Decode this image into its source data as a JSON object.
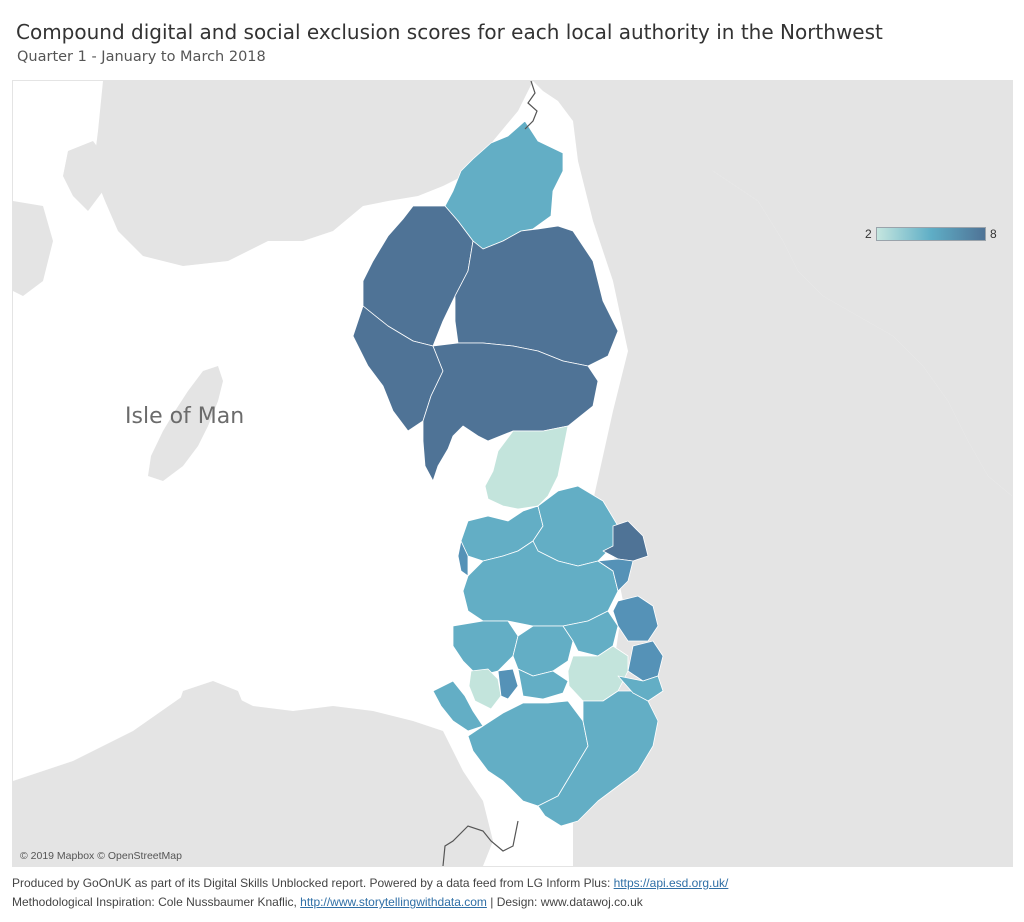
{
  "title": "Compound digital and social exclusion scores for each local authority in the Northwest",
  "subtitle": "Quarter 1 - January to March 2018",
  "map": {
    "place_label": "Isle of Man",
    "attribution": "© 2019 Mapbox © OpenStreetMap",
    "legend": {
      "min": "2",
      "max": "8",
      "color_low": "#c5e6df",
      "color_mid": "#5faec6",
      "color_high": "#4f7396"
    },
    "colors": {
      "land": "#e3e3e3",
      "water": "#ffffff",
      "dark": "#4f7396",
      "medium": "#63aec5",
      "medium_dark": "#5592b7",
      "light": "#c3e4dc"
    }
  },
  "footer": {
    "line1_text": "Produced by GoOnUK as part of its Digital Skills Unblocked report. Powered by a data feed from LG Inform Plus: ",
    "line1_link": "https://api.esd.org.uk/",
    "line2_text": "Methodological Inspiration: Cole Nussbaumer Knaflic,  ",
    "line2_link": "http://www.storytellingwithdata.com",
    "line2_suffix": " | Design: www.datawoj.co.uk"
  }
}
